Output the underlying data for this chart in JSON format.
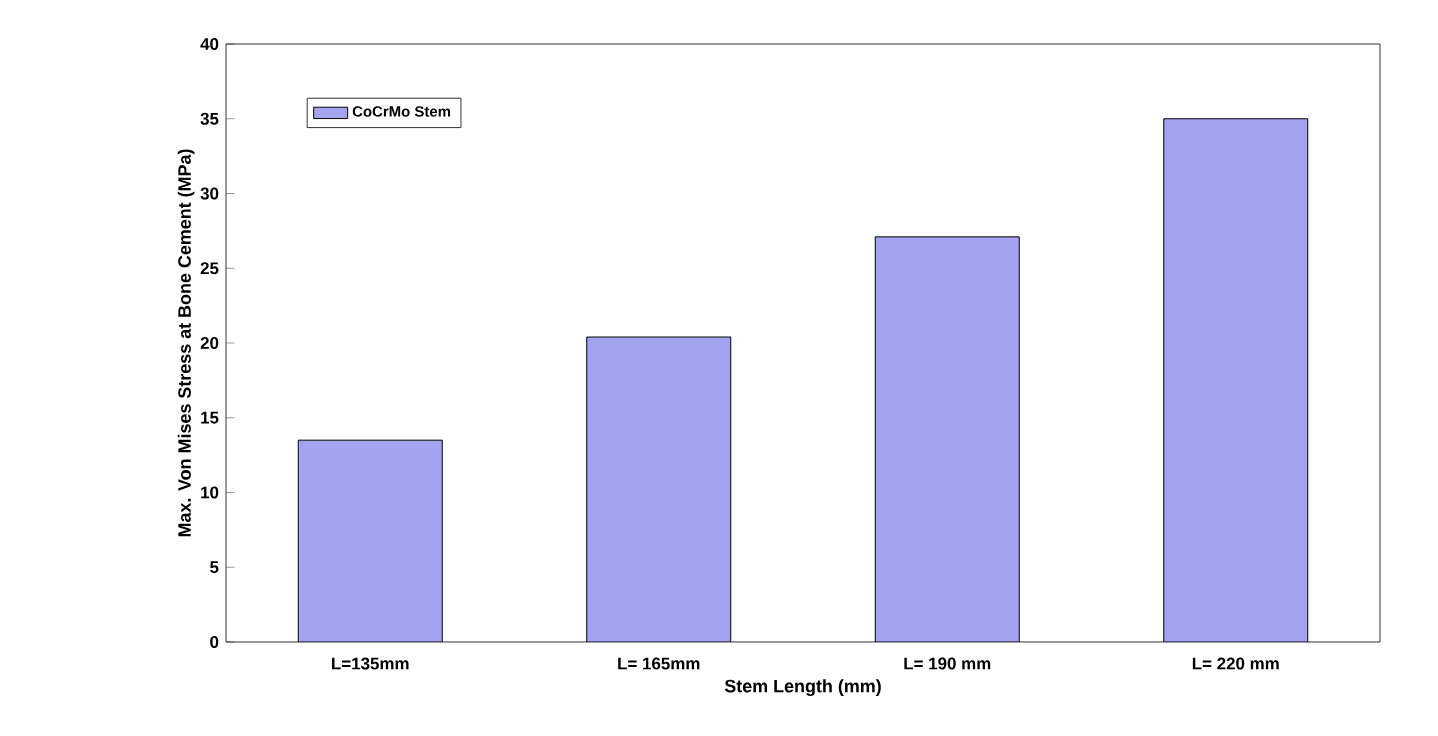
{
  "chart_data": {
    "type": "bar",
    "xlabel": "Stem Length (mm)",
    "ylabel": "Max. Von Mises Stress at Bone Cement (MPa)",
    "categories": [
      "L=135mm",
      "L= 165mm",
      "L= 190 mm",
      "L= 220 mm"
    ],
    "series": [
      {
        "name": "CoCrMo Stem",
        "color": "#a3a3f0",
        "values": [
          13.5,
          20.4,
          27.1,
          35
        ]
      }
    ],
    "ylim": [
      0,
      40
    ],
    "yticks": [
      0,
      5,
      10,
      15,
      20,
      25,
      30,
      35,
      40
    ],
    "grid": false,
    "legend": "top left"
  }
}
